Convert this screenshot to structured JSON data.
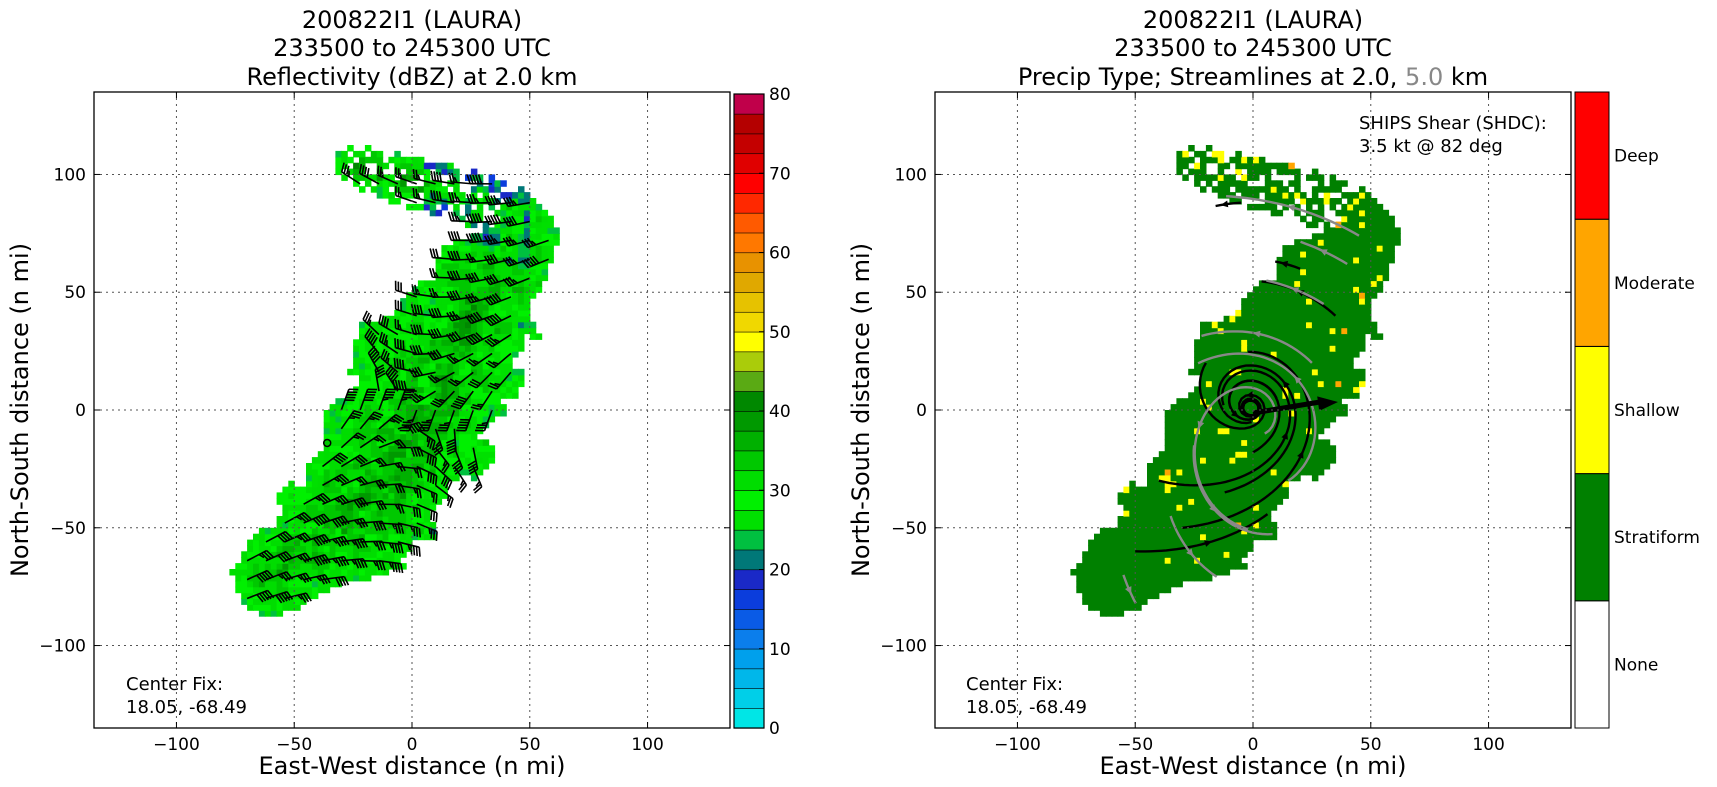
{
  "chart_data": [
    {
      "type": "heatmap",
      "title_lines": [
        "200822I1 (LAURA)",
        "233500 to 245300 UTC",
        "Reflectivity (dBZ) at 2.0 km"
      ],
      "xlabel": "East-West distance (n mi)",
      "ylabel": "North-South distance (n mi)",
      "xlim": [
        -135,
        135
      ],
      "ylim": [
        -135,
        135
      ],
      "xticks": [
        -100,
        -50,
        0,
        50,
        100
      ],
      "yticks": [
        -100,
        -50,
        0,
        50,
        100
      ],
      "xtick_labels": [
        "−100",
        "−50",
        "0",
        "50",
        "100"
      ],
      "ytick_labels": [
        "−100",
        "−50",
        "0",
        "50",
        "100"
      ],
      "grid": true,
      "annotation": [
        "Center Fix:",
        "18.05, -68.49"
      ],
      "overlay": "wind barbs",
      "colorbar": {
        "min": 0,
        "max": 80,
        "step": 2.5,
        "ticks": [
          0,
          10,
          20,
          30,
          40,
          50,
          60,
          70,
          80
        ],
        "tick_labels": [
          "0",
          "10",
          "20",
          "30",
          "40",
          "50",
          "60",
          "70",
          "80"
        ],
        "colors": [
          "#00e6e6",
          "#00cfe8",
          "#00b7ea",
          "#00a0ec",
          "#0b7eec",
          "#0a5be6",
          "#0b3ddc",
          "#1a29c7",
          "#007878",
          "#00c040",
          "#00e000",
          "#00f000",
          "#00dd00",
          "#00c800",
          "#00b000",
          "#009900",
          "#008800",
          "#5aaa14",
          "#aacc0a",
          "#ffff00",
          "#f0d800",
          "#e6c200",
          "#e0a800",
          "#e89200",
          "#ff7800",
          "#ff5a00",
          "#ff2800",
          "#ff0000",
          "#e00000",
          "#c40000",
          "#b40000",
          "#c0004a",
          "#dd00aa",
          "#ee00ee",
          "#cc22dd",
          "#a24fcc",
          "#7a3e99",
          "#4a1f58",
          "#000000"
        ]
      },
      "field_value_range_dbz": [
        5,
        45
      ]
    },
    {
      "type": "heatmap",
      "title_lines": [
        "200822I1 (LAURA)",
        "233500 to 245300 UTC",
        "Precip Type; Streamlines at 2.0, ",
        "5.0",
        " km"
      ],
      "xlabel": "East-West distance (n mi)",
      "ylabel": "North-South distance (n mi)",
      "xlim": [
        -135,
        135
      ],
      "ylim": [
        -135,
        135
      ],
      "xticks": [
        -100,
        -50,
        0,
        50,
        100
      ],
      "yticks": [
        -100,
        -50,
        0,
        50,
        100
      ],
      "xtick_labels": [
        "−100",
        "−50",
        "0",
        "50",
        "100"
      ],
      "ytick_labels": [
        "−100",
        "−50",
        "0",
        "50",
        "100"
      ],
      "grid": true,
      "annotation": [
        "Center Fix:",
        "18.05, -68.49"
      ],
      "shear_text": [
        "SHIPS Shear (SHDC):",
        "3.5 kt @ 82 deg"
      ],
      "shear_vector": {
        "speed_kt": 3.5,
        "direction_deg": 82
      },
      "overlay": "streamlines",
      "streamline_colors": {
        "2.0 km": "#000000",
        "5.0 km": "#888888"
      },
      "categories": [
        {
          "name": "None",
          "color": "#ffffff"
        },
        {
          "name": "Stratiform",
          "color": "#008000"
        },
        {
          "name": "Shallow",
          "color": "#ffff00"
        },
        {
          "name": "Moderate",
          "color": "#ffa500"
        },
        {
          "name": "Deep",
          "color": "#ff0000"
        }
      ]
    }
  ]
}
